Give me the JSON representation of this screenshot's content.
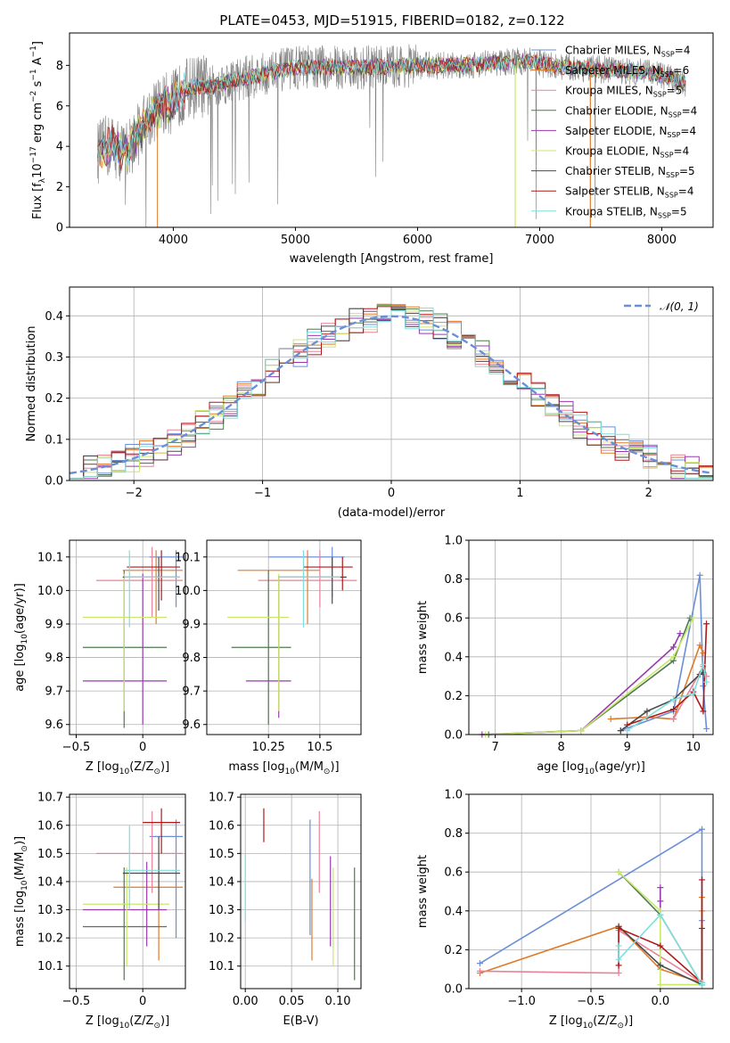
{
  "figure": {
    "title": "PLATE=0453, MJD=51915, FIBERID=0182, z=0.122"
  },
  "palette": {
    "Chabrier MILES": "#6a8fd8",
    "Salpeter MILES": "#e07b2a",
    "Kroupa MILES": "#e8829a",
    "Chabrier ELODIE": "#4f7a4f",
    "Salpeter ELODIE": "#9a3ab0",
    "Kroupa ELODIE": "#c9e86a",
    "Chabrier STELIB": "#4a4a4a",
    "Salpeter STELIB": "#b01818",
    "Kroupa STELIB": "#7fdede"
  },
  "chart_data": [
    {
      "id": "spectrum",
      "type": "line",
      "xlabel": "wavelength [Angstrom, rest frame]",
      "ylabel_main": "Flux [f",
      "ylabel_sub": "λ",
      "ylabel_rest": "10",
      "ylabel_exp": "−17",
      "ylabel_tail": " erg cm",
      "ylabel_exp2": "−2",
      "ylabel_tail2": " s",
      "ylabel_exp3": "−1",
      "ylabel_tail3": " A",
      "ylabel_exp4": "−1",
      "ylabel_end": "]",
      "xlim": [
        3150,
        8420
      ],
      "ylim": [
        0,
        9.6
      ],
      "xticks": [
        4000,
        5000,
        6000,
        7000,
        8000
      ],
      "yticks": [
        0,
        2,
        4,
        6,
        8
      ],
      "legend": [
        {
          "name": "Chabrier MILES",
          "nssp": "4"
        },
        {
          "name": "Salpeter MILES",
          "nssp": "6"
        },
        {
          "name": "Kroupa MILES",
          "nssp": "5"
        },
        {
          "name": "Chabrier ELODIE",
          "nssp": "4"
        },
        {
          "name": "Salpeter ELODIE",
          "nssp": "4"
        },
        {
          "name": "Kroupa ELODIE",
          "nssp": "4"
        },
        {
          "name": "Chabrier STELIB",
          "nssp": "5"
        },
        {
          "name": "Salpeter STELIB",
          "nssp": "4"
        },
        {
          "name": "Kroupa STELIB",
          "nssp": "5"
        }
      ],
      "legend_placement": "right",
      "nssp_label": "N",
      "nssp_sub": "SSP",
      "data_color": "#808080",
      "continuum": {
        "x": [
          3380,
          3500,
          3600,
          3700,
          3800,
          3900,
          4000,
          4100,
          4200,
          4300,
          4500,
          4700,
          5000,
          5300,
          5600,
          6000,
          6300,
          6600,
          6900,
          7200,
          7500,
          7800,
          8000,
          8200
        ],
        "y": [
          3.7,
          4.1,
          3.6,
          4.5,
          5.5,
          6.0,
          6.2,
          6.8,
          7.0,
          6.9,
          7.3,
          7.5,
          7.9,
          7.9,
          7.9,
          8.0,
          8.0,
          8.1,
          8.2,
          7.9,
          7.8,
          7.7,
          7.5,
          7.1
        ]
      }
    },
    {
      "id": "residuals",
      "type": "histogram",
      "xlabel": "(data-model)/error",
      "ylabel": "Normed distribution",
      "xlim": [
        -2.5,
        2.5
      ],
      "ylim": [
        0,
        0.47
      ],
      "xticks": [
        -2,
        -1,
        0,
        1,
        2
      ],
      "yticks": [
        0.0,
        0.1,
        0.2,
        0.3,
        0.4
      ],
      "grid": true,
      "bins": 46,
      "reference_label": "𝒩(0, 1)",
      "reference_color": "#6a8fd8"
    },
    {
      "id": "age-vs-Z",
      "type": "scatter",
      "xlabel": "Z [log",
      "xlabel_sub": "10",
      "xlabel_tail": "(Z/Z",
      "xlabel_sun": "⊙",
      "xlabel_end": ")]",
      "ylabel": "age  [log",
      "ylabel_sub": "10",
      "ylabel_tail": "(age/yr)]",
      "xlim": [
        -0.55,
        0.32
      ],
      "ylim": [
        9.57,
        10.15
      ],
      "xticks": [
        -0.5,
        0.0
      ],
      "yticks": [
        9.6,
        9.7,
        9.8,
        9.9,
        10.0,
        10.1
      ],
      "grid": true
    },
    {
      "id": "age-vs-mass",
      "type": "scatter",
      "xlabel": "mass [log",
      "xlabel_sub": "10",
      "xlabel_tail": "(M/M",
      "xlabel_sun": "⊙",
      "xlabel_end": ")]",
      "xlim": [
        9.95,
        10.7
      ],
      "ylim": [
        9.57,
        10.15
      ],
      "xticks": [
        10.25,
        10.5
      ],
      "yticks": [
        9.6,
        9.7,
        9.8,
        9.9,
        10.0,
        10.1
      ],
      "grid": true
    },
    {
      "id": "weight-vs-age",
      "type": "line",
      "xlabel": "age  [log",
      "xlabel_sub": "10",
      "xlabel_tail": "(age/yr)]",
      "ylabel": "mass weight",
      "xlim": [
        6.6,
        10.3
      ],
      "ylim": [
        0,
        1
      ],
      "xticks": [
        7,
        8,
        9,
        10
      ],
      "yticks": [
        0.0,
        0.2,
        0.4,
        0.6,
        0.8,
        1.0
      ],
      "grid": true,
      "series": [
        {
          "key": "Chabrier MILES",
          "x": [
            8.9,
            9.7,
            10.1,
            10.15,
            10.2
          ],
          "y": [
            0.02,
            0.12,
            0.82,
            0.25,
            0.03
          ]
        },
        {
          "key": "Salpeter MILES",
          "x": [
            8.75,
            9.3,
            9.7,
            10.1,
            10.15
          ],
          "y": [
            0.08,
            0.09,
            0.08,
            0.46,
            0.42
          ]
        },
        {
          "key": "Kroupa MILES",
          "x": [
            9.7,
            10.15,
            10.2
          ],
          "y": [
            0.08,
            0.35,
            0.3
          ]
        },
        {
          "key": "Chabrier ELODIE",
          "x": [
            6.9,
            8.3,
            9.7,
            9.95
          ],
          "y": [
            0.0,
            0.02,
            0.38,
            0.6
          ]
        },
        {
          "key": "Salpeter ELODIE",
          "x": [
            6.8,
            8.3,
            9.7,
            9.8
          ],
          "y": [
            0.0,
            0.02,
            0.45,
            0.52
          ]
        },
        {
          "key": "Kroupa ELODIE",
          "x": [
            6.85,
            8.3,
            9.7,
            10.0
          ],
          "y": [
            0.0,
            0.02,
            0.4,
            0.6
          ]
        },
        {
          "key": "Chabrier STELIB",
          "x": [
            8.9,
            9.3,
            9.7,
            10.1,
            10.15
          ],
          "y": [
            0.02,
            0.12,
            0.18,
            0.31,
            0.32
          ]
        },
        {
          "key": "Salpeter STELIB",
          "x": [
            9.0,
            9.7,
            10.0,
            10.15,
            10.2
          ],
          "y": [
            0.05,
            0.13,
            0.22,
            0.12,
            0.57
          ]
        },
        {
          "key": "Kroupa STELIB",
          "x": [
            9.0,
            9.7,
            10.0,
            10.15,
            10.2
          ],
          "y": [
            0.02,
            0.18,
            0.21,
            0.36,
            0.27
          ]
        }
      ]
    },
    {
      "id": "mass-vs-Z",
      "type": "scatter",
      "xlabel": "Z [log",
      "xlabel_sub": "10",
      "xlabel_tail": "(Z/Z",
      "xlabel_sun": "⊙",
      "xlabel_end": ")]",
      "ylabel": "mass [log",
      "ylabel_sub": "10",
      "ylabel_tail": "(M/M",
      "ylabel_sun": "⊙",
      "ylabel_end": ")]",
      "xlim": [
        -0.55,
        0.32
      ],
      "ylim": [
        10.02,
        10.71
      ],
      "xticks": [
        -0.5,
        0.0
      ],
      "yticks": [
        10.1,
        10.2,
        10.3,
        10.4,
        10.5,
        10.6,
        10.7
      ],
      "grid": true
    },
    {
      "id": "mass-vs-ebv",
      "type": "scatter",
      "xlabel": "E(B-V)",
      "xlim": [
        -0.005,
        0.125
      ],
      "ylim": [
        10.02,
        10.71
      ],
      "xticks": [
        0.0,
        0.05,
        0.1
      ],
      "xticklabels": [
        "0.00",
        "0.05",
        "0.10"
      ],
      "yticks": [
        10.1,
        10.2,
        10.3,
        10.4,
        10.5,
        10.6,
        10.7
      ],
      "grid": true,
      "bars": [
        {
          "key": "Kroupa STELIB",
          "x": 0.0,
          "y0": 10.26,
          "y1": 10.5
        },
        {
          "key": "Salpeter STELIB",
          "x": 0.02,
          "y0": 10.54,
          "y1": 10.66
        },
        {
          "key": "Chabrier MILES",
          "x": 0.07,
          "y0": 10.21,
          "y1": 10.62
        },
        {
          "key": "Salpeter MILES",
          "x": 0.072,
          "y0": 10.12,
          "y1": 10.41
        },
        {
          "key": "Kroupa MILES",
          "x": 0.08,
          "y0": 10.36,
          "y1": 10.65
        },
        {
          "key": "Salpeter ELODIE",
          "x": 0.092,
          "y0": 10.17,
          "y1": 10.49
        },
        {
          "key": "Kroupa ELODIE",
          "x": 0.095,
          "y0": 10.1,
          "y1": 10.45
        },
        {
          "key": "Chabrier ELODIE",
          "x": 0.118,
          "y0": 10.05,
          "y1": 10.45
        }
      ]
    },
    {
      "id": "weight-vs-Z",
      "type": "line",
      "xlabel": "Z [log",
      "xlabel_sub": "10",
      "xlabel_tail": "(Z/Z",
      "xlabel_sun": "⊙",
      "xlabel_end": ")]",
      "ylabel": "mass weight",
      "xlim": [
        -1.38,
        0.38
      ],
      "ylim": [
        0,
        1
      ],
      "xticks": [
        -1.0,
        -0.5,
        0.0
      ],
      "xticklabels": [
        "−1.0",
        "−0.5",
        "0.0"
      ],
      "yticks": [
        0.0,
        0.2,
        0.4,
        0.6,
        0.8,
        1.0
      ],
      "grid": true,
      "series": [
        {
          "key": "Chabrier MILES",
          "x": [
            -1.3,
            0.3,
            0.3,
            0.3
          ],
          "y": [
            0.13,
            0.82,
            0.35,
            0.03
          ]
        },
        {
          "key": "Salpeter MILES",
          "x": [
            -1.3,
            -0.3,
            0.0,
            0.3,
            0.3,
            0.3
          ],
          "y": [
            0.08,
            0.32,
            0.1,
            0.03,
            0.47,
            0.4
          ]
        },
        {
          "key": "Kroupa MILES",
          "x": [
            -1.3,
            -0.3,
            -0.3,
            0.3
          ],
          "y": [
            0.09,
            0.08,
            0.3,
            0.03
          ]
        },
        {
          "key": "Chabrier ELODIE",
          "x": [
            -0.3,
            0.0,
            0.3
          ],
          "y": [
            0.6,
            0.38,
            0.02
          ]
        },
        {
          "key": "Salpeter ELODIE",
          "x": [
            0.0,
            0.0,
            0.0
          ],
          "y": [
            0.45,
            0.52,
            0.4
          ]
        },
        {
          "key": "Kroupa ELODIE",
          "x": [
            -0.3,
            0.0,
            0.0,
            0.3
          ],
          "y": [
            0.6,
            0.4,
            0.02,
            0.02
          ]
        },
        {
          "key": "Chabrier STELIB",
          "x": [
            -0.3,
            0.0,
            0.3,
            0.3
          ],
          "y": [
            0.32,
            0.12,
            0.02,
            0.31
          ]
        },
        {
          "key": "Salpeter STELIB",
          "x": [
            -0.3,
            -0.3,
            0.0,
            0.3,
            0.3
          ],
          "y": [
            0.12,
            0.31,
            0.22,
            0.03,
            0.56
          ]
        },
        {
          "key": "Kroupa STELIB",
          "x": [
            -0.3,
            -0.3,
            0.0,
            0.3,
            0.3
          ],
          "y": [
            0.22,
            0.15,
            0.38,
            0.02,
            0.03
          ]
        }
      ]
    }
  ]
}
